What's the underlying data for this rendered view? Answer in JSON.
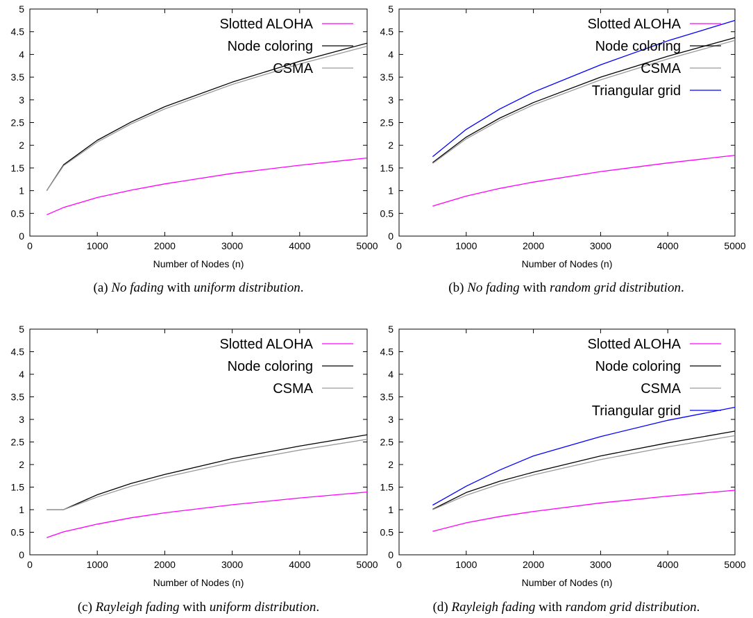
{
  "figure": {
    "colors": {
      "slotted_aloha": "#ff00ff",
      "node_coloring": "#000000",
      "csma": "#9a9a9a",
      "triangular_grid": "#0000ff"
    }
  },
  "chart_data": [
    {
      "type": "line",
      "caption_label": "(a)",
      "caption_parts": [
        {
          "text": "No fading",
          "italic": true
        },
        {
          "text": " with ",
          "italic": false
        },
        {
          "text": "uniform distribution",
          "italic": true
        },
        {
          "text": ".",
          "italic": false
        }
      ],
      "xlabel": "Number of Nodes (n)",
      "ylabel": "",
      "xlim": [
        0,
        5000
      ],
      "ylim": [
        0,
        5
      ],
      "xticks": [
        0,
        1000,
        2000,
        3000,
        4000,
        5000
      ],
      "yticks": [
        0,
        0.5,
        1,
        1.5,
        2,
        2.5,
        3,
        3.5,
        4,
        4.5,
        5
      ],
      "legend_position": "top-right",
      "grid": false,
      "series": [
        {
          "name": "Slotted ALOHA",
          "color": "#ff00ff",
          "x": [
            250,
            500,
            1000,
            1500,
            2000,
            3000,
            4000,
            5000
          ],
          "y": [
            0.47,
            0.63,
            0.85,
            1.01,
            1.15,
            1.38,
            1.56,
            1.72
          ]
        },
        {
          "name": "Node coloring",
          "color": "#000000",
          "x": [
            250,
            500,
            1000,
            1500,
            2000,
            3000,
            4000,
            5000
          ],
          "y": [
            1.0,
            1.57,
            2.11,
            2.51,
            2.85,
            3.39,
            3.85,
            4.25
          ]
        },
        {
          "name": "CSMA",
          "color": "#9a9a9a",
          "x": [
            250,
            500,
            1000,
            1500,
            2000,
            3000,
            4000,
            5000
          ],
          "y": [
            1.0,
            1.55,
            2.07,
            2.47,
            2.8,
            3.34,
            3.79,
            4.18
          ]
        }
      ]
    },
    {
      "type": "line",
      "caption_label": "(b)",
      "caption_parts": [
        {
          "text": "No fading",
          "italic": true
        },
        {
          "text": " with ",
          "italic": false
        },
        {
          "text": "random grid distribution",
          "italic": true
        },
        {
          "text": ".",
          "italic": false
        }
      ],
      "xlabel": "Number of Nodes (n)",
      "ylabel": "",
      "xlim": [
        0,
        5000
      ],
      "ylim": [
        0,
        5
      ],
      "xticks": [
        0,
        1000,
        2000,
        3000,
        4000,
        5000
      ],
      "yticks": [
        0,
        0.5,
        1,
        1.5,
        2,
        2.5,
        3,
        3.5,
        4,
        4.5,
        5
      ],
      "legend_position": "top-right",
      "grid": false,
      "series": [
        {
          "name": "Slotted ALOHA",
          "color": "#ff00ff",
          "x": [
            500,
            1000,
            1500,
            2000,
            3000,
            4000,
            5000
          ],
          "y": [
            0.66,
            0.88,
            1.05,
            1.19,
            1.42,
            1.61,
            1.78
          ]
        },
        {
          "name": "Node coloring",
          "color": "#000000",
          "x": [
            500,
            1000,
            1500,
            2000,
            3000,
            4000,
            5000
          ],
          "y": [
            1.62,
            2.18,
            2.6,
            2.94,
            3.5,
            3.96,
            4.37
          ]
        },
        {
          "name": "CSMA",
          "color": "#9a9a9a",
          "x": [
            500,
            1000,
            1500,
            2000,
            3000,
            4000,
            5000
          ],
          "y": [
            1.6,
            2.14,
            2.55,
            2.89,
            3.44,
            3.9,
            4.31
          ]
        },
        {
          "name": "Triangular grid",
          "color": "#0000ff",
          "x": [
            500,
            1000,
            1500,
            2000,
            3000,
            4000,
            5000
          ],
          "y": [
            1.75,
            2.35,
            2.8,
            3.17,
            3.77,
            4.3,
            4.75
          ]
        }
      ]
    },
    {
      "type": "line",
      "caption_label": "(c)",
      "caption_parts": [
        {
          "text": "Rayleigh fading",
          "italic": true
        },
        {
          "text": " with ",
          "italic": false
        },
        {
          "text": "uniform distribution",
          "italic": true
        },
        {
          "text": ".",
          "italic": false
        }
      ],
      "xlabel": "Number of Nodes (n)",
      "ylabel": "",
      "xlim": [
        0,
        5000
      ],
      "ylim": [
        0,
        5
      ],
      "xticks": [
        0,
        1000,
        2000,
        3000,
        4000,
        5000
      ],
      "yticks": [
        0,
        0.5,
        1,
        1.5,
        2,
        2.5,
        3,
        3.5,
        4,
        4.5,
        5
      ],
      "legend_position": "top-right",
      "grid": false,
      "series": [
        {
          "name": "Slotted ALOHA",
          "color": "#ff00ff",
          "x": [
            250,
            500,
            1000,
            1500,
            2000,
            3000,
            4000,
            5000
          ],
          "y": [
            0.38,
            0.51,
            0.68,
            0.82,
            0.93,
            1.11,
            1.26,
            1.39
          ]
        },
        {
          "name": "Node coloring",
          "color": "#000000",
          "x": [
            250,
            500,
            1000,
            1500,
            2000,
            3000,
            4000,
            5000
          ],
          "y": [
            1.0,
            1.0,
            1.33,
            1.58,
            1.78,
            2.13,
            2.41,
            2.66
          ]
        },
        {
          "name": "CSMA",
          "color": "#9a9a9a",
          "x": [
            250,
            500,
            1000,
            1500,
            2000,
            3000,
            4000,
            5000
          ],
          "y": [
            1.0,
            1.0,
            1.28,
            1.52,
            1.72,
            2.05,
            2.32,
            2.56
          ]
        }
      ]
    },
    {
      "type": "line",
      "caption_label": "(d)",
      "caption_parts": [
        {
          "text": "Rayleigh fading",
          "italic": true
        },
        {
          "text": " with ",
          "italic": false
        },
        {
          "text": "random grid distribution",
          "italic": true
        },
        {
          "text": ".",
          "italic": false
        }
      ],
      "xlabel": "Number of Nodes (n)",
      "ylabel": "",
      "xlim": [
        0,
        5000
      ],
      "ylim": [
        0,
        5
      ],
      "xticks": [
        0,
        1000,
        2000,
        3000,
        4000,
        5000
      ],
      "yticks": [
        0,
        0.5,
        1,
        1.5,
        2,
        2.5,
        3,
        3.5,
        4,
        4.5,
        5
      ],
      "legend_position": "top-right",
      "grid": false,
      "series": [
        {
          "name": "Slotted ALOHA",
          "color": "#ff00ff",
          "x": [
            500,
            1000,
            1500,
            2000,
            3000,
            4000,
            5000
          ],
          "y": [
            0.52,
            0.71,
            0.85,
            0.96,
            1.15,
            1.3,
            1.43
          ]
        },
        {
          "name": "Node coloring",
          "color": "#000000",
          "x": [
            500,
            1000,
            1500,
            2000,
            3000,
            4000,
            5000
          ],
          "y": [
            1.01,
            1.38,
            1.63,
            1.83,
            2.19,
            2.48,
            2.74
          ]
        },
        {
          "name": "CSMA",
          "color": "#9a9a9a",
          "x": [
            500,
            1000,
            1500,
            2000,
            3000,
            4000,
            5000
          ],
          "y": [
            1.0,
            1.32,
            1.57,
            1.77,
            2.11,
            2.39,
            2.64
          ]
        },
        {
          "name": "Triangular grid",
          "color": "#0000ff",
          "x": [
            500,
            1000,
            1500,
            2000,
            3000,
            4000,
            5000
          ],
          "y": [
            1.1,
            1.52,
            1.88,
            2.19,
            2.62,
            2.98,
            3.27
          ]
        }
      ]
    }
  ]
}
